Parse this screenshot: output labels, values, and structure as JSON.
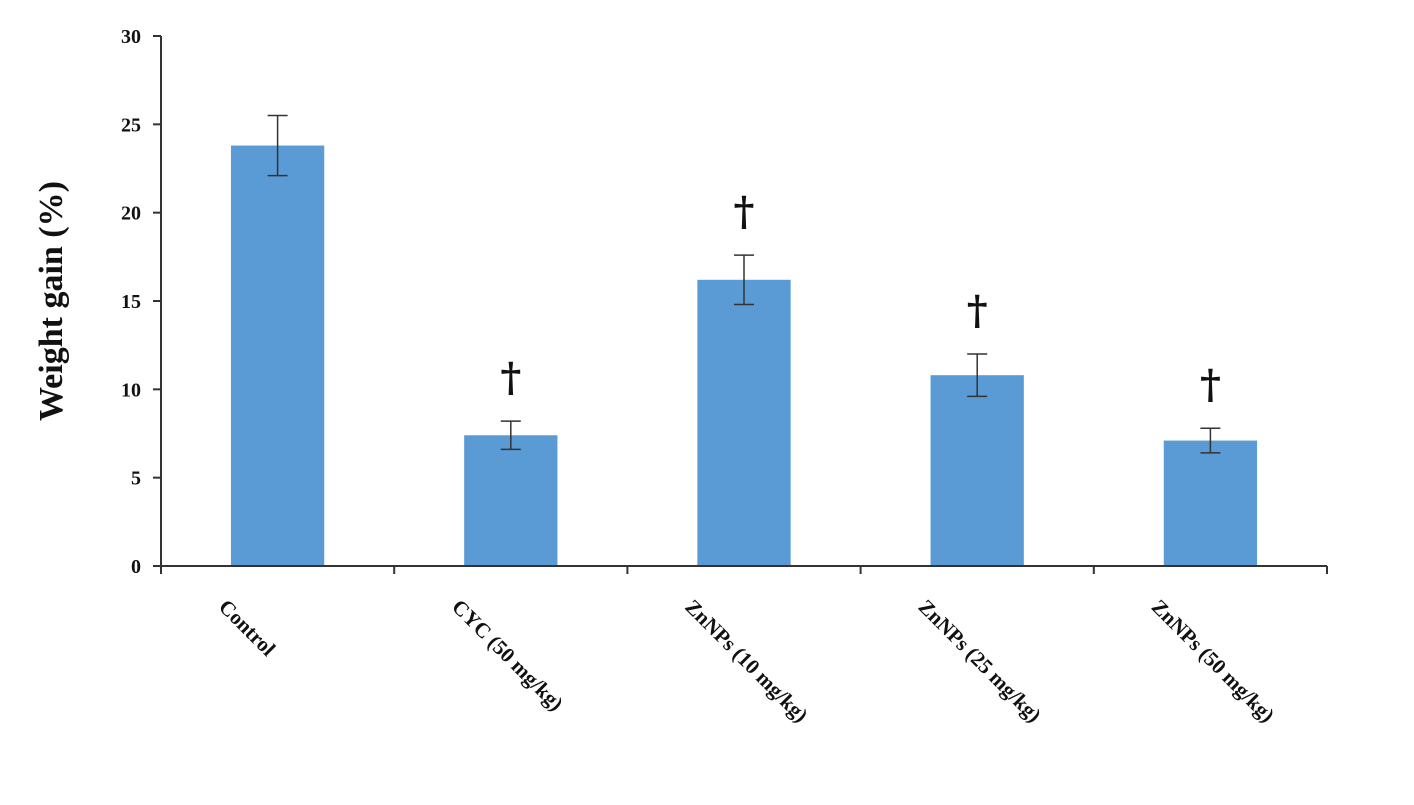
{
  "chart_data": {
    "type": "bar",
    "title": "",
    "xlabel": "",
    "ylabel": "Weight gain (%)",
    "ylim": [
      0,
      30
    ],
    "yticks": [
      0,
      5,
      10,
      15,
      20,
      25,
      30
    ],
    "categories": [
      "Control",
      "CYC (50 mg/kg)",
      "ZnNPs (10 mg/kg)",
      "ZnNPs (25 mg/kg)",
      "ZnNPs (50 mg/kg)"
    ],
    "values": [
      23.8,
      7.4,
      16.2,
      10.8,
      7.1
    ],
    "errors": [
      1.7,
      0.8,
      1.4,
      1.2,
      0.7
    ],
    "significance": [
      "",
      "†",
      "†",
      "†",
      "†"
    ],
    "bar_color": "#5B9BD5",
    "grid": false,
    "legend": "none"
  }
}
